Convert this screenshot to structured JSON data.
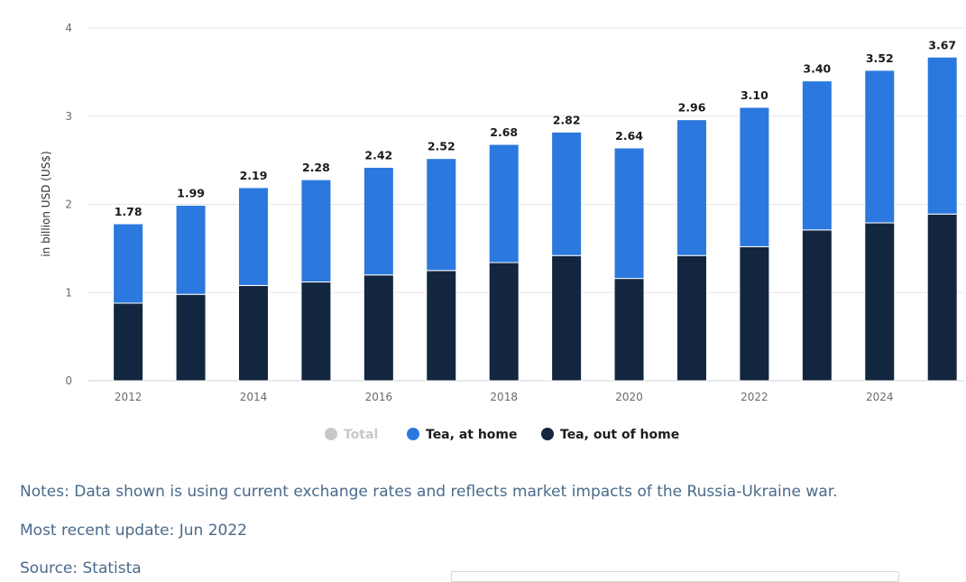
{
  "chart_data": {
    "type": "bar",
    "stacked": true,
    "ylabel": "in billion USD (US$)",
    "ylim": [
      0,
      4
    ],
    "yticks": [
      "0",
      "1",
      "2",
      "3",
      "4"
    ],
    "categories": [
      "2012",
      "2013",
      "2014",
      "2015",
      "2016",
      "2017",
      "2018",
      "2019",
      "2020",
      "2021",
      "2022",
      "2023",
      "2024",
      "2025"
    ],
    "xtick_labels": [
      "2012",
      "",
      "2014",
      "",
      "2016",
      "",
      "2018",
      "",
      "2020",
      "",
      "2022",
      "",
      "2024",
      ""
    ],
    "series": [
      {
        "name": "Tea, out of home",
        "color": "#12263f",
        "values": [
          0.88,
          0.98,
          1.08,
          1.12,
          1.2,
          1.25,
          1.34,
          1.42,
          1.16,
          1.42,
          1.52,
          1.71,
          1.79,
          1.89
        ]
      },
      {
        "name": "Tea, at home",
        "color": "#2b78de",
        "values": [
          0.9,
          1.01,
          1.11,
          1.16,
          1.22,
          1.27,
          1.34,
          1.4,
          1.48,
          1.54,
          1.58,
          1.69,
          1.73,
          1.78
        ]
      }
    ],
    "totals": [
      "1.78",
      "1.99",
      "2.19",
      "2.28",
      "2.42",
      "2.52",
      "2.68",
      "2.82",
      "2.64",
      "2.96",
      "3.10",
      "3.40",
      "3.52",
      "3.67"
    ],
    "legend": [
      {
        "label": "Total",
        "color": "#c8c8c8",
        "disabled": true
      },
      {
        "label": "Tea, at home",
        "color": "#2b78de"
      },
      {
        "label": "Tea, out of home",
        "color": "#12263f"
      }
    ],
    "grid": true,
    "legend_position": "bottom-center"
  },
  "notes": {
    "text": "Notes: Data shown is using current exchange rates and reflects market impacts of the Russia-Ukraine war.",
    "update": "Most recent update: Jun 2022",
    "source": "Source: Statista"
  }
}
